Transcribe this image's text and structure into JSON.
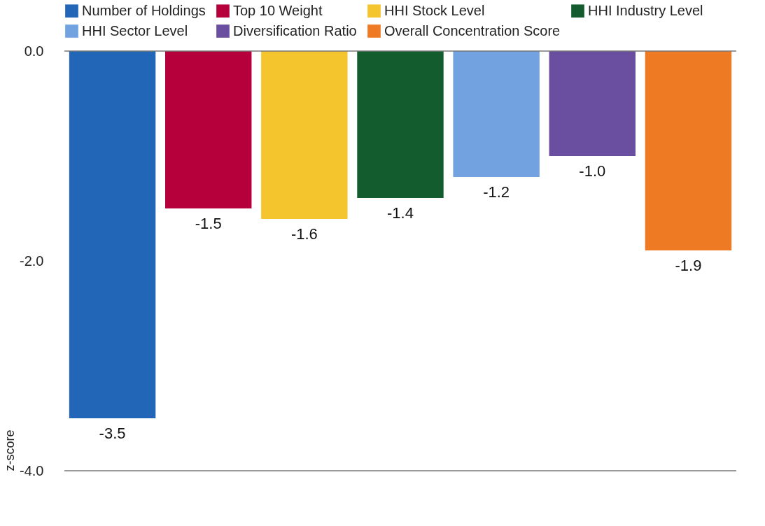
{
  "chart_data": {
    "type": "bar",
    "ylabel": "z-score",
    "categories": [
      null
    ],
    "series": [
      {
        "name": "Number of Holdings",
        "color": "#2266b8",
        "values": [
          -3.5
        ],
        "value_labels": [
          "-3.5"
        ]
      },
      {
        "name": "Top 10 Weight",
        "color": "#b5003c",
        "values": [
          -1.5
        ],
        "value_labels": [
          "-1.5"
        ]
      },
      {
        "name": "HHI Stock Level",
        "color": "#f4c52c",
        "values": [
          -1.6
        ],
        "value_labels": [
          "-1.6"
        ]
      },
      {
        "name": "HHI Industry Level",
        "color": "#135c2e",
        "values": [
          -1.4
        ],
        "value_labels": [
          "-1.4"
        ]
      },
      {
        "name": "HHI Sector Level",
        "color": "#72a3e0",
        "values": [
          -1.2
        ],
        "value_labels": [
          "-1.2"
        ]
      },
      {
        "name": "Diversification Ratio",
        "color": "#6a4ea0",
        "values": [
          -1.0
        ],
        "value_labels": [
          "-1.0"
        ]
      },
      {
        "name": "Overall Concentration Score",
        "color": "#ef7a24",
        "values": [
          -1.9
        ],
        "value_labels": [
          "-1.9"
        ]
      }
    ],
    "ylim": [
      -4,
      0
    ],
    "yticks": [
      {
        "value": 0,
        "label": "0.0"
      },
      {
        "value": -2,
        "label": "-2.0"
      },
      {
        "value": -4,
        "label": "-4.0"
      }
    ],
    "legend": "top",
    "grid": false
  }
}
